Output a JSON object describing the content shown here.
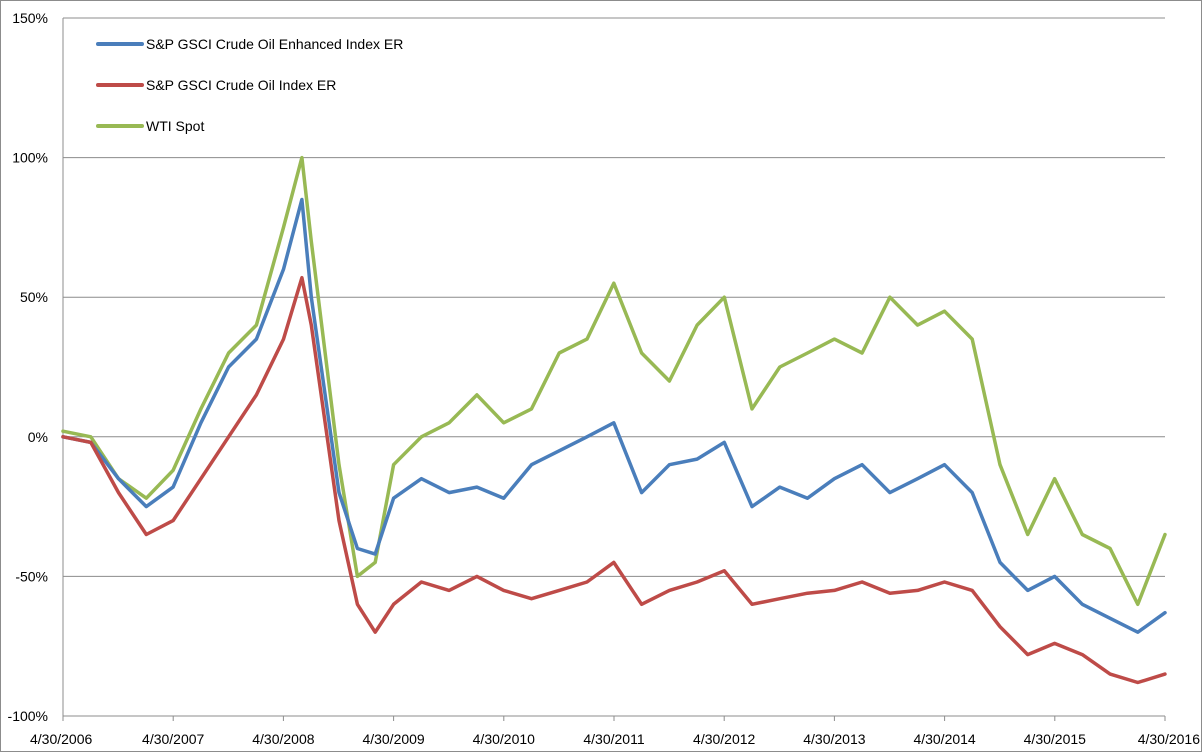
{
  "chart_data": {
    "type": "line",
    "title": "",
    "xlabel": "",
    "ylabel": "",
    "x_ticks": [
      "4/30/2006",
      "4/30/2007",
      "4/30/2008",
      "4/30/2009",
      "4/30/2010",
      "4/30/2011",
      "4/30/2012",
      "4/30/2013",
      "4/30/2014",
      "4/30/2015",
      "4/30/2016"
    ],
    "y_ticks": [
      "150%",
      "100%",
      "50%",
      "0%",
      "-50%",
      "-100%"
    ],
    "ylim": [
      -100,
      150
    ],
    "xlim": [
      "2006-04-30",
      "2016-04-30"
    ],
    "grid": "horizontal",
    "legend_position": "top-left",
    "x": [
      "2006-04-30",
      "2006-07-31",
      "2006-10-31",
      "2007-01-31",
      "2007-04-30",
      "2007-07-31",
      "2007-10-31",
      "2008-01-31",
      "2008-04-30",
      "2008-06-30",
      "2008-07-31",
      "2008-10-31",
      "2008-12-31",
      "2009-02-28",
      "2009-04-30",
      "2009-07-31",
      "2009-10-31",
      "2010-01-31",
      "2010-04-30",
      "2010-07-31",
      "2010-10-31",
      "2011-01-31",
      "2011-04-30",
      "2011-07-31",
      "2011-10-31",
      "2012-01-31",
      "2012-04-30",
      "2012-07-31",
      "2012-10-31",
      "2013-01-31",
      "2013-04-30",
      "2013-07-31",
      "2013-10-31",
      "2014-01-31",
      "2014-04-30",
      "2014-07-31",
      "2014-10-31",
      "2015-01-31",
      "2015-04-30",
      "2015-07-31",
      "2015-10-31",
      "2016-01-31",
      "2016-04-30"
    ],
    "series": [
      {
        "name": "S&P GSCI Crude Oil Enhanced Index ER",
        "color": "#4a7ebb",
        "values": [
          0,
          -2,
          -15,
          -25,
          -18,
          5,
          25,
          35,
          60,
          85,
          50,
          -20,
          -40,
          -42,
          -22,
          -15,
          -20,
          -18,
          -22,
          -10,
          -5,
          0,
          5,
          -20,
          -10,
          -8,
          -2,
          -25,
          -18,
          -22,
          -15,
          -10,
          -20,
          -15,
          -10,
          -20,
          -45,
          -55,
          -50,
          -60,
          -65,
          -70,
          -63
        ]
      },
      {
        "name": "S&P GSCI Crude Oil Index ER",
        "color": "#be4b48",
        "values": [
          0,
          -2,
          -20,
          -35,
          -30,
          -15,
          0,
          15,
          35,
          57,
          40,
          -30,
          -60,
          -70,
          -60,
          -52,
          -55,
          -50,
          -55,
          -58,
          -55,
          -52,
          -45,
          -60,
          -55,
          -52,
          -48,
          -60,
          -58,
          -56,
          -55,
          -52,
          -56,
          -55,
          -52,
          -55,
          -68,
          -78,
          -74,
          -78,
          -85,
          -88,
          -85
        ]
      },
      {
        "name": "WTI Spot",
        "color": "#98b954",
        "values": [
          2,
          0,
          -15,
          -22,
          -12,
          10,
          30,
          40,
          75,
          100,
          70,
          -10,
          -50,
          -45,
          -10,
          0,
          5,
          15,
          5,
          10,
          30,
          35,
          55,
          30,
          20,
          40,
          50,
          10,
          25,
          30,
          35,
          30,
          50,
          40,
          45,
          35,
          -10,
          -35,
          -15,
          -35,
          -40,
          -60,
          -35
        ]
      }
    ]
  }
}
